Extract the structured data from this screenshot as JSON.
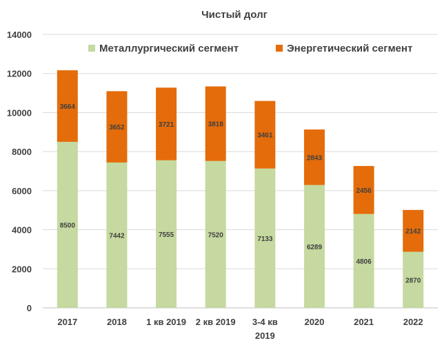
{
  "chart_data": {
    "type": "bar",
    "stacked": true,
    "title": "Чистый долг",
    "xlabel": "",
    "ylabel": "",
    "categories": [
      "2017",
      "2018",
      "1 кв 2019",
      "2 кв 2019",
      "3-4 кв 2019",
      "2020",
      "2021",
      "2022"
    ],
    "series": [
      {
        "name": "Металлургический сегмент",
        "color": "#c5d9a0",
        "values": [
          8500,
          7442,
          7555,
          7520,
          7133,
          6289,
          4806,
          2870
        ]
      },
      {
        "name": "Энергетический сегмент",
        "color": "#e46c0a",
        "values": [
          3664,
          3652,
          3721,
          3818,
          3461,
          2843,
          2456,
          2142
        ]
      }
    ],
    "ylim": [
      0,
      14000
    ],
    "yticks": [
      0,
      2000,
      4000,
      6000,
      8000,
      10000,
      12000,
      14000
    ],
    "grid": true,
    "legend_position": "top"
  }
}
